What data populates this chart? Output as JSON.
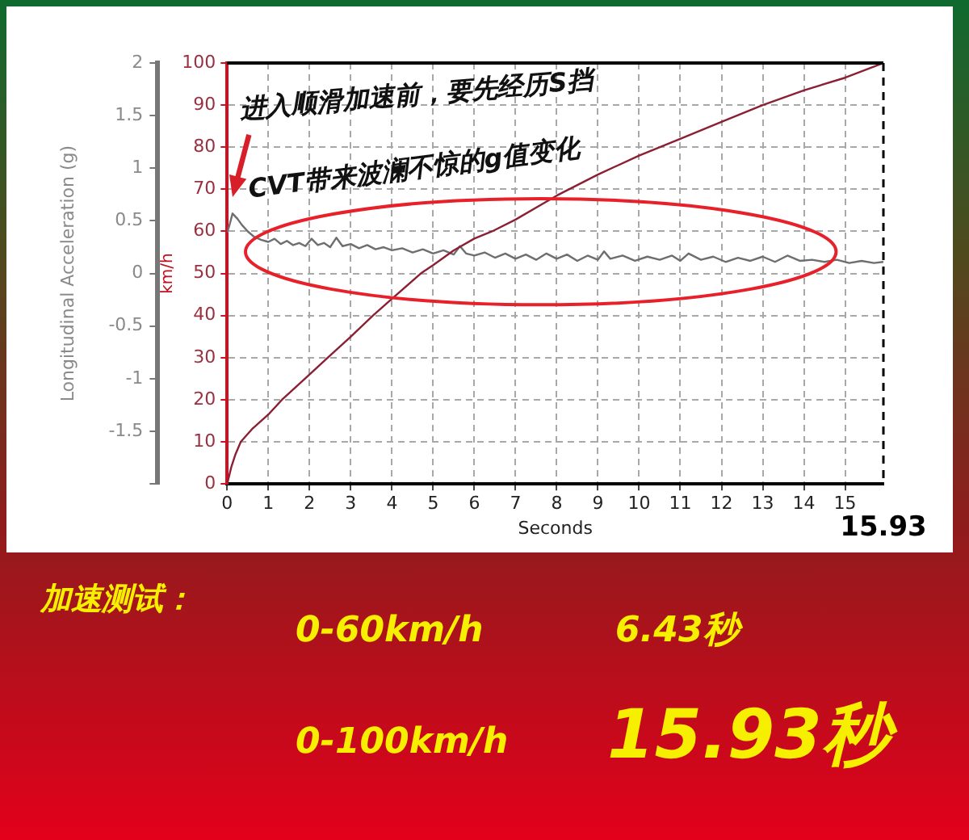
{
  "chart_data": {
    "type": "line",
    "annotations": [
      "进入顺滑加速前，要先经历S挡",
      "CVT带来波澜不惊的g值变化",
      "加速测试：",
      "0-60km/h",
      "6.43秒",
      "0-100km/h",
      "15.93秒"
    ],
    "xlabel": "Seconds",
    "ylabel": "km/h",
    "y2label": "Longitudinal Acceleration (g)",
    "xlim": [
      0,
      15.93
    ],
    "xticks": [
      0,
      1,
      2,
      3,
      4,
      5,
      6,
      7,
      8,
      9,
      10,
      11,
      12,
      13,
      14,
      15
    ],
    "ylim": [
      0,
      100
    ],
    "yticks": [
      0,
      10,
      20,
      30,
      40,
      50,
      60,
      70,
      80,
      90,
      100
    ],
    "y2lim": [
      -2,
      2
    ],
    "y2ticks": [
      {
        "value": -2,
        "label": null
      },
      -1.5,
      -1,
      -0.5,
      0,
      0.5,
      1,
      1.5,
      2
    ],
    "grid": true,
    "legend": false,
    "marker": "none",
    "ref_lines": [
      {
        "axis": "x",
        "value": 15.93,
        "label": "15.93",
        "line_style": "dashed",
        "color": "#000000"
      }
    ],
    "series": [
      {
        "color": "#8b2035",
        "x": [
          0,
          0.1,
          0.2,
          0.33,
          0.6,
          1,
          1.33,
          2,
          2.44,
          3,
          3.54,
          4,
          4.7,
          5,
          5.5,
          6,
          6.43,
          7,
          8,
          9,
          10,
          11,
          12,
          13,
          14,
          15,
          15.93
        ],
        "values": [
          0,
          4,
          7,
          10,
          13,
          16.5,
          20,
          26,
          30,
          35,
          40,
          44,
          50,
          52,
          55.5,
          58.3,
          60,
          62.8,
          68.5,
          73.5,
          78,
          82,
          86,
          90,
          93.5,
          96.5,
          100
        ]
      },
      {
        "color": "#6e6e6e",
        "axis": "y2",
        "x": [
          0,
          0.05,
          0.13,
          0.25,
          0.36,
          0.5,
          0.65,
          0.82,
          1.0,
          1.15,
          1.3,
          1.45,
          1.6,
          1.75,
          1.9,
          2.05,
          2.2,
          2.35,
          2.5,
          2.65,
          2.8,
          3.0,
          3.2,
          3.4,
          3.6,
          3.8,
          4.0,
          4.25,
          4.5,
          4.75,
          5.0,
          5.25,
          5.5,
          5.65,
          5.8,
          6.0,
          6.25,
          6.5,
          6.75,
          7.0,
          7.25,
          7.5,
          7.75,
          8.0,
          8.25,
          8.5,
          8.75,
          9.0,
          9.15,
          9.3,
          9.6,
          9.9,
          10.2,
          10.5,
          10.8,
          11.0,
          11.2,
          11.5,
          11.8,
          12.1,
          12.4,
          12.7,
          13.0,
          13.3,
          13.6,
          13.9,
          14.2,
          14.5,
          14.8,
          15.1,
          15.4,
          15.7,
          15.93
        ],
        "values": [
          0.39,
          0.45,
          0.57,
          0.52,
          0.46,
          0.4,
          0.35,
          0.32,
          0.3,
          0.33,
          0.28,
          0.31,
          0.27,
          0.29,
          0.26,
          0.33,
          0.27,
          0.29,
          0.25,
          0.34,
          0.26,
          0.28,
          0.24,
          0.27,
          0.23,
          0.25,
          0.22,
          0.24,
          0.2,
          0.23,
          0.19,
          0.22,
          0.18,
          0.26,
          0.19,
          0.17,
          0.2,
          0.15,
          0.19,
          0.14,
          0.18,
          0.13,
          0.19,
          0.14,
          0.18,
          0.12,
          0.17,
          0.13,
          0.21,
          0.14,
          0.17,
          0.12,
          0.16,
          0.13,
          0.17,
          0.12,
          0.19,
          0.13,
          0.16,
          0.11,
          0.15,
          0.12,
          0.16,
          0.11,
          0.17,
          0.12,
          0.13,
          0.11,
          0.13,
          0.1,
          0.12,
          0.1,
          0.11
        ]
      }
    ]
  }
}
